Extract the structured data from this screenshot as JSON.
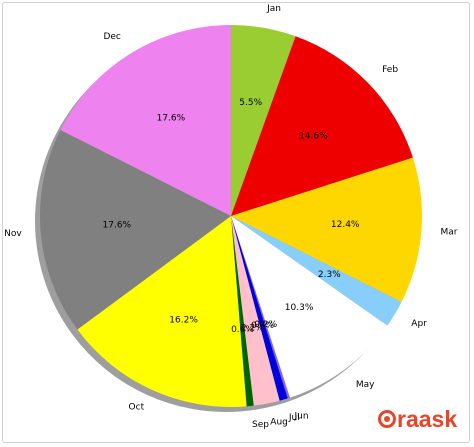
{
  "chart_data": {
    "type": "pie",
    "title": "",
    "start_angle": 90,
    "direction": "clockwise",
    "shadow": true,
    "categories": [
      "Jan",
      "Feb",
      "Mar",
      "Apr",
      "May",
      "Jun",
      "Jul",
      "Aug",
      "Sep",
      "Oct",
      "Nov",
      "Dec"
    ],
    "values": [
      5.5,
      14.6,
      12.4,
      2.3,
      10.3,
      0.2,
      0.7,
      2.2,
      0.6,
      16.2,
      17.6,
      17.6
    ],
    "percent_labels": [
      "5.5%",
      "14.6%",
      "12.4%",
      "2.3%",
      "10.3%",
      "0.2%",
      "0.7%",
      "2.2%",
      "0.6%",
      "16.2%",
      "17.6%",
      "17.6%"
    ],
    "colors": [
      "#9acd32",
      "#ee0000",
      "#ffd700",
      "#87cefa",
      "#ffffff",
      "#7b68ee",
      "#0000dd",
      "#ffc0cb",
      "#006400",
      "#ffff00",
      "#808080",
      "#ee82ee"
    ]
  },
  "watermark": {
    "text": "raask"
  }
}
